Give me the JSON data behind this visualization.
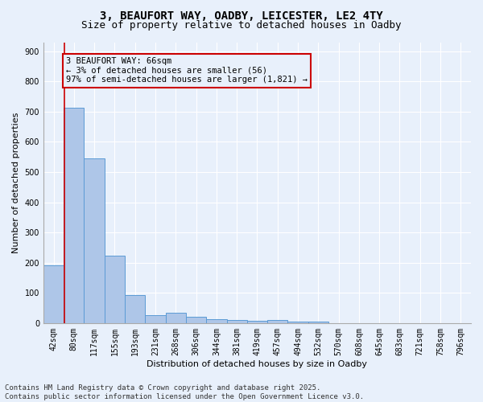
{
  "title_line1": "3, BEAUFORT WAY, OADBY, LEICESTER, LE2 4TY",
  "title_line2": "Size of property relative to detached houses in Oadby",
  "xlabel": "Distribution of detached houses by size in Oadby",
  "ylabel": "Number of detached properties",
  "categories": [
    "42sqm",
    "80sqm",
    "117sqm",
    "155sqm",
    "193sqm",
    "231sqm",
    "268sqm",
    "306sqm",
    "344sqm",
    "381sqm",
    "419sqm",
    "457sqm",
    "494sqm",
    "532sqm",
    "570sqm",
    "608sqm",
    "645sqm",
    "683sqm",
    "721sqm",
    "758sqm",
    "796sqm"
  ],
  "values": [
    190,
    712,
    545,
    222,
    93,
    27,
    35,
    22,
    14,
    11,
    8,
    11,
    5,
    4,
    0,
    0,
    0,
    0,
    0,
    0,
    0
  ],
  "bar_color": "#aec6e8",
  "bar_edge_color": "#5b9bd5",
  "ylim": [
    0,
    930
  ],
  "yticks": [
    0,
    100,
    200,
    300,
    400,
    500,
    600,
    700,
    800,
    900
  ],
  "vline_x": 0.52,
  "vline_color": "#cc0000",
  "annotation_text": "3 BEAUFORT WAY: 66sqm\n← 3% of detached houses are smaller (56)\n97% of semi-detached houses are larger (1,821) →",
  "annotation_box_color": "#cc0000",
  "footer_text": "Contains HM Land Registry data © Crown copyright and database right 2025.\nContains public sector information licensed under the Open Government Licence v3.0.",
  "background_color": "#e8f0fb",
  "grid_color": "#ffffff",
  "title_fontsize": 10,
  "subtitle_fontsize": 9,
  "axis_label_fontsize": 8,
  "tick_fontsize": 7,
  "footer_fontsize": 6.5
}
